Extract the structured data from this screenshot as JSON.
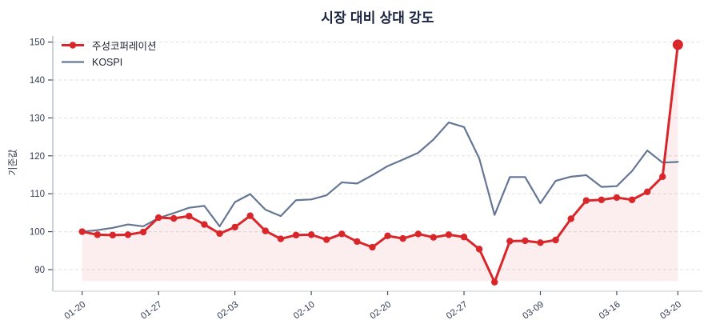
{
  "chart_data": {
    "type": "line",
    "title": "시장 대비 상대 강도",
    "ylabel": "기준값",
    "xlabel": "",
    "grid": "horizontal-dashed",
    "legend_position": "top-left",
    "ylim": [
      84.3,
      151.6
    ],
    "yticks": [
      90,
      100,
      110,
      120,
      130,
      140,
      150
    ],
    "x_tick_labels": [
      "01-20",
      "01-27",
      "02-03",
      "02-10",
      "02-20",
      "02-27",
      "03-09",
      "03-16",
      "03-20"
    ],
    "x_tick_indices": [
      0,
      5,
      10,
      15,
      20,
      25,
      30,
      35,
      39
    ],
    "n_points": 40,
    "series": [
      {
        "name": "주성코퍼레이션",
        "color": "#d8262b",
        "line_width": 3,
        "markers": true,
        "marker_radius": 4.2,
        "last_point_emphasis": true,
        "last_marker_radius": 6.5,
        "fill_to_min": true,
        "fill_opacity": 0.08,
        "values": [
          100.0,
          99.2,
          99.1,
          99.2,
          99.9,
          103.7,
          103.5,
          104.1,
          101.9,
          99.5,
          101.2,
          104.2,
          100.2,
          98.1,
          99.1,
          99.2,
          97.9,
          99.4,
          97.4,
          95.9,
          98.9,
          98.2,
          99.4,
          98.5,
          99.2,
          98.6,
          95.4,
          86.7,
          97.5,
          97.6,
          97.1,
          97.8,
          103.4,
          108.2,
          108.4,
          109.0,
          108.4,
          110.5,
          114.5,
          149.3
        ]
      },
      {
        "name": "KOSPI",
        "color": "#657694",
        "line_width": 2.2,
        "markers": false,
        "fill_to_min": false,
        "values": [
          100.0,
          100.4,
          101.0,
          101.9,
          101.4,
          103.6,
          104.9,
          106.3,
          106.8,
          101.4,
          107.8,
          109.9,
          105.8,
          104.1,
          108.3,
          108.5,
          109.6,
          113.0,
          112.7,
          114.9,
          117.3,
          119.0,
          120.8,
          124.3,
          128.8,
          127.6,
          119.3,
          104.4,
          114.4,
          114.4,
          107.5,
          113.4,
          114.5,
          114.9,
          111.8,
          112.0,
          116.0,
          121.4,
          118.2,
          118.4
        ]
      }
    ],
    "colors": {
      "title_text": "#1a2340",
      "tick_text": "#333d52",
      "grid_line": "#e0e0e0",
      "spine_left": "#a9afba",
      "spine_bottom": "#d2d6dd",
      "tick_mark": "#4a4f5a"
    }
  }
}
